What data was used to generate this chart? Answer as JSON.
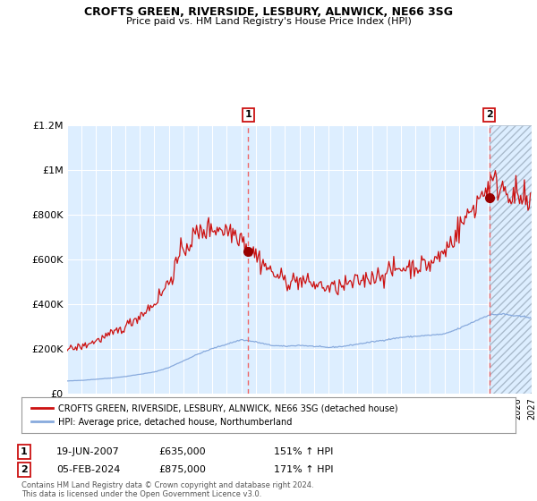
{
  "title": "CROFTS GREEN, RIVERSIDE, LESBURY, ALNWICK, NE66 3SG",
  "subtitle": "Price paid vs. HM Land Registry's House Price Index (HPI)",
  "figure_bg": "#f8f8f8",
  "plot_bg_color": "#ddeeff",
  "grid_color": "#ffffff",
  "y_ticks": [
    0,
    200000,
    400000,
    600000,
    800000,
    1000000,
    1200000
  ],
  "y_tick_labels": [
    "£0",
    "£200K",
    "£400K",
    "£600K",
    "£800K",
    "£1M",
    "£1.2M"
  ],
  "x_start_year": 1995,
  "x_end_year": 2027,
  "sale1_date": 2007.47,
  "sale1_price": 635000,
  "sale2_date": 2024.09,
  "sale2_price": 875000,
  "hpi_line_color": "#88aadd",
  "price_line_color": "#cc1111",
  "sale_marker_color": "#990000",
  "vline_color": "#ee6666",
  "hatch_color": "#bbccdd",
  "legend_entry1": "CROFTS GREEN, RIVERSIDE, LESBURY, ALNWICK, NE66 3SG (detached house)",
  "legend_entry2": "HPI: Average price, detached house, Northumberland",
  "annotation1_date": "19-JUN-2007",
  "annotation1_price": "£635,000",
  "annotation1_hpi": "151% ↑ HPI",
  "annotation2_date": "05-FEB-2024",
  "annotation2_price": "£875,000",
  "annotation2_hpi": "171% ↑ HPI",
  "footer": "Contains HM Land Registry data © Crown copyright and database right 2024.\nThis data is licensed under the Open Government Licence v3.0."
}
